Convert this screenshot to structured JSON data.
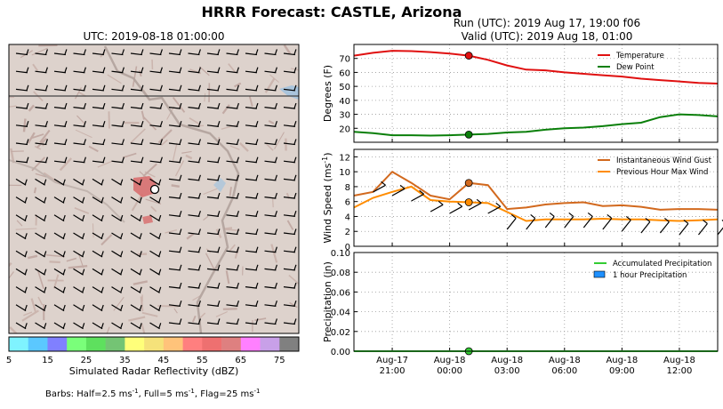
{
  "suptitle": "HRRR Forecast: CASTLE, Arizona",
  "map": {
    "title": "UTC: 2019-08-18 01:00:00",
    "barb_note_prefix": "Barbs: Half=2.5 ms",
    "barb_note_mid1": ", Full=5 ms",
    "barb_note_mid2": ", Flag=25 ms",
    "exponent": "-1"
  },
  "run_title": "Run (UTC): 2019 Aug 17, 19:00 f06",
  "valid_title": "Valid (UTC): 2019 Aug 18, 01:00",
  "colorbar": {
    "label": "Simulated Radar Reflectivity (dBZ)",
    "ticks": [
      "5",
      "15",
      "25",
      "35",
      "45",
      "55",
      "65",
      "75"
    ],
    "colors": [
      "#7ff3ff",
      "#5bc8ff",
      "#8080ff",
      "#7aff7a",
      "#5ee05e",
      "#74c474",
      "#ffff7a",
      "#f5e27a",
      "#ffc37a",
      "#ff7f7f",
      "#ee7070",
      "#de8080",
      "#ff80ff",
      "#c8a0e8",
      "#808080"
    ]
  },
  "x_ticks": [
    {
      "t": 2,
      "l1": "Aug-17",
      "l2": "21:00"
    },
    {
      "t": 5,
      "l1": "Aug-18",
      "l2": "00:00"
    },
    {
      "t": 8,
      "l1": "Aug-18",
      "l2": "03:00"
    },
    {
      "t": 11,
      "l1": "Aug-18",
      "l2": "06:00"
    },
    {
      "t": 14,
      "l1": "Aug-18",
      "l2": "09:00"
    },
    {
      "t": 17,
      "l1": "Aug-18",
      "l2": "12:00"
    }
  ],
  "chart_data": [
    {
      "type": "line",
      "ylabel": "Degrees (F)",
      "ylim": [
        10,
        80
      ],
      "yticks": [
        20,
        30,
        40,
        50,
        60,
        70
      ],
      "grid": true,
      "legend_position": "top-right",
      "valid_index": 6,
      "series": [
        {
          "name": "Temperature",
          "color": "#e01010",
          "values": [
            72,
            74,
            75.5,
            75.2,
            74.5,
            73.5,
            72,
            69,
            65,
            62,
            61.5,
            60,
            59,
            58,
            57,
            55.5,
            54.5,
            53.5,
            52.5,
            52
          ]
        },
        {
          "name": "Dew Point",
          "color": "#0a7f0a",
          "values": [
            17.5,
            16.5,
            15,
            15,
            14.8,
            15,
            15.5,
            16,
            17,
            17.5,
            19,
            20,
            20.5,
            21.5,
            23,
            24,
            28,
            30,
            29.5,
            28.5
          ]
        }
      ]
    },
    {
      "type": "line",
      "ylabel": "Wind Speed (ms",
      "ylabel_exp": "-1",
      "ylabel_close": ")",
      "ylim": [
        0,
        13
      ],
      "yticks": [
        0,
        2,
        4,
        6,
        8,
        10,
        12
      ],
      "grid": true,
      "legend_position": "top-right",
      "valid_index": 6,
      "series": [
        {
          "name": "Instantaneous Wind Gust",
          "color": "#d2691e",
          "values": [
            6.8,
            7.3,
            10,
            8.5,
            6.8,
            6.3,
            8.5,
            8.2,
            5,
            5.2,
            5.6,
            5.8,
            5.9,
            5.4,
            5.5,
            5.3,
            4.9,
            5,
            5,
            4.9
          ]
        },
        {
          "name": "Previous Hour Max Wind",
          "color": "#ff8c00",
          "values": [
            5.2,
            6.5,
            7.3,
            8,
            6.2,
            6,
            5.9,
            5.8,
            4.6,
            3.4,
            3.6,
            3.6,
            3.6,
            3.7,
            3.6,
            3.6,
            3.5,
            3.4,
            3.5,
            3.6
          ]
        }
      ]
    },
    {
      "type": "bar",
      "ylabel": "Precipitation (in)",
      "ylim": [
        0,
        0.1
      ],
      "yticks": [
        "0.00",
        "0.02",
        "0.04",
        "0.06",
        "0.08",
        "0.10"
      ],
      "grid": true,
      "legend_position": "top-right",
      "valid_index": 6,
      "series": [
        {
          "name": "Accumulated Precipitation",
          "color": "#33cc33",
          "values": [
            0,
            0,
            0,
            0,
            0,
            0,
            0,
            0,
            0,
            0,
            0,
            0,
            0,
            0,
            0,
            0,
            0,
            0,
            0,
            0
          ]
        },
        {
          "name": "1 hour Precipitation",
          "color": "#1e90ff",
          "values": [
            0,
            0,
            0,
            0,
            0,
            0,
            0,
            0,
            0,
            0,
            0,
            0,
            0,
            0,
            0,
            0,
            0,
            0,
            0,
            0
          ]
        }
      ]
    }
  ]
}
